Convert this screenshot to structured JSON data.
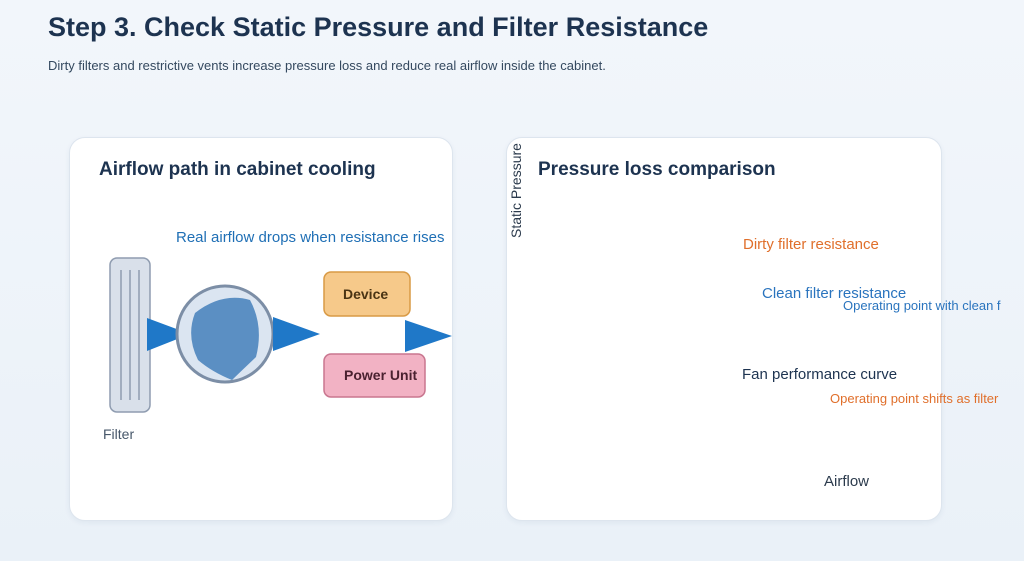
{
  "header": {
    "title": "Step 3. Check Static Pressure and Filter Resistance",
    "subtitle": "Dirty filters and restrictive vents increase pressure loss and reduce real airflow inside the cabinet."
  },
  "left_panel": {
    "title": "Airflow path in cabinet cooling",
    "note": "Real airflow drops when resistance rises",
    "filter_label": "Filter",
    "device_label": "Device",
    "power_unit_label": "Power Unit",
    "colors": {
      "filter": "#d9e0ea",
      "fan": "#5b8fc3",
      "arrow": "#1f78c8",
      "device": "#f6c98a",
      "power_unit": "#f2b2c4"
    }
  },
  "right_panel": {
    "title": "Pressure loss comparison",
    "y_axis_label": "Static Pressure",
    "x_axis_label": "Airflow",
    "dirty_label": "Dirty filter resistance",
    "clean_label": "Clean filter resistance",
    "fan_label": "Fan performance curve",
    "op_clean_label": "Operating point with clean f",
    "op_shift_label": "Operating point shifts as filter",
    "colors": {
      "dirty": "#e8732e",
      "clean": "#2d7ec9",
      "fan": "#1d3350"
    }
  }
}
